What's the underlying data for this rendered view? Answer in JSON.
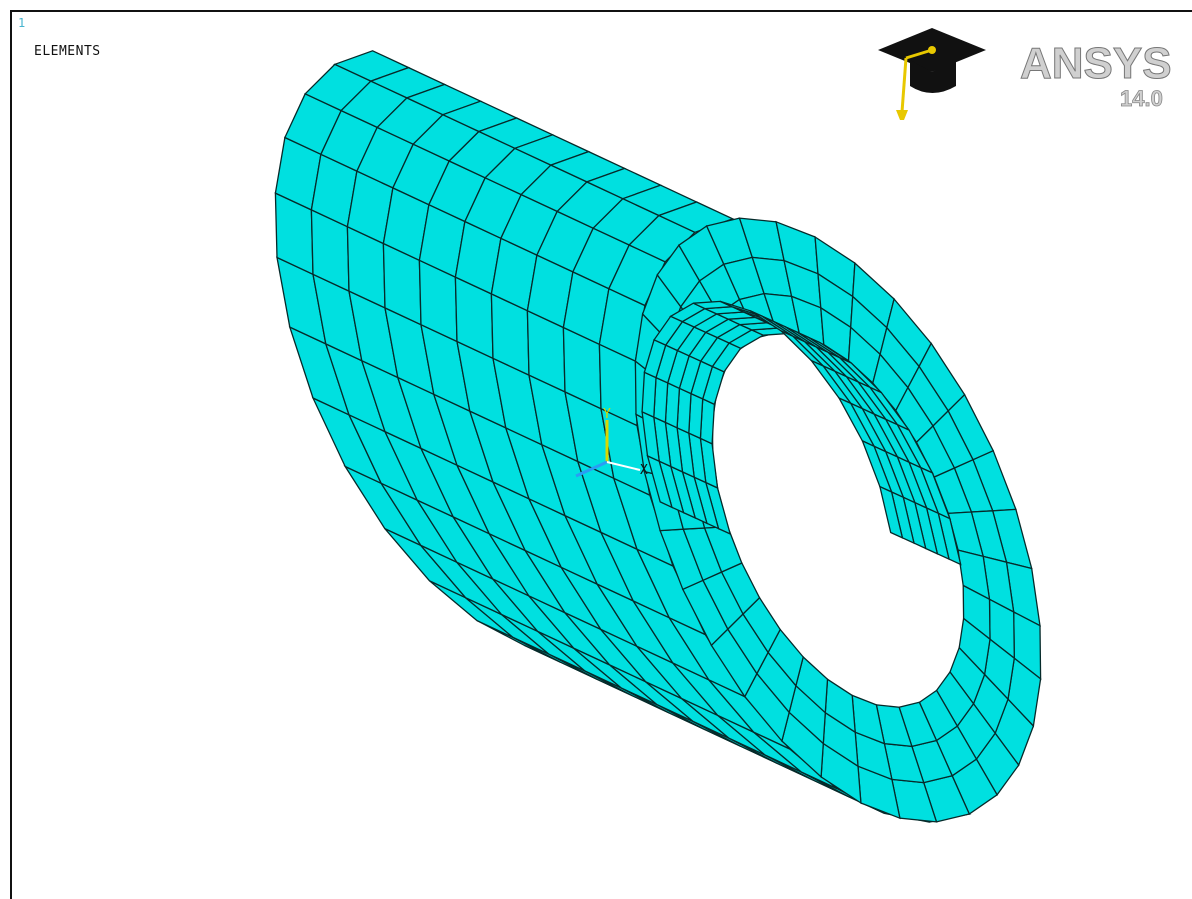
{
  "viewport": {
    "window_number": "1",
    "plot_label": "ELEMENTS"
  },
  "logo": {
    "brand_text": "ANSYS",
    "version": "14.0",
    "icon": "graduation-cap-icon"
  },
  "triad": {
    "y_label": "Y",
    "x_label": "X"
  },
  "colors": {
    "mesh_fill": "#00e0e0",
    "mesh_fill_dark": "#00b7b7",
    "mesh_line": "#062a2a",
    "triad_y": "#d8d800",
    "triad_z": "#2a9df4",
    "triad_x": "#ffffff"
  }
}
